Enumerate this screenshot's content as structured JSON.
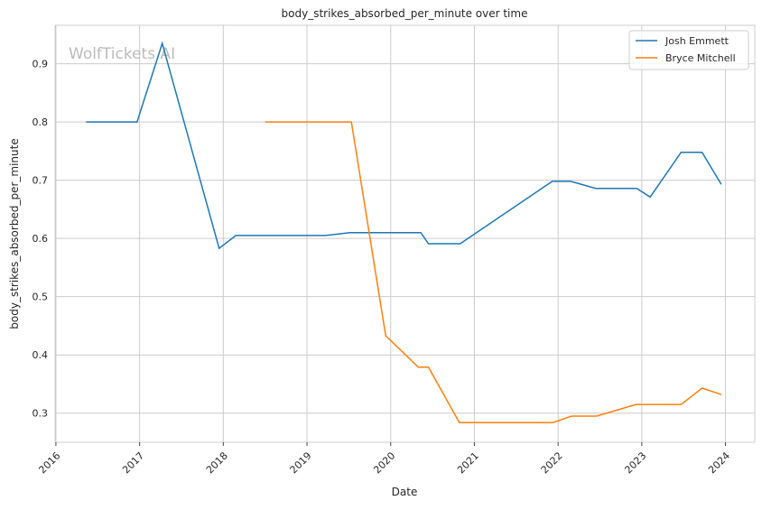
{
  "chart_data": {
    "type": "line",
    "title": "body_strikes_absorbed_per_minute over time",
    "xlabel": "Date",
    "ylabel": "body_strikes_absorbed_per_minute",
    "xlim": [
      2015.99,
      2024.35
    ],
    "ylim": [
      0.25,
      0.966
    ],
    "xticks": [
      2016,
      2017,
      2018,
      2019,
      2020,
      2021,
      2022,
      2023,
      2024
    ],
    "xtick_labels": [
      "2016",
      "2017",
      "2018",
      "2019",
      "2020",
      "2021",
      "2022",
      "2023",
      "2024"
    ],
    "yticks": [
      0.3,
      0.4,
      0.5,
      0.6,
      0.7,
      0.8,
      0.9
    ],
    "ytick_labels": [
      "0.3",
      "0.4",
      "0.5",
      "0.6",
      "0.7",
      "0.8",
      "0.9"
    ],
    "grid": true,
    "legend_position": "top-right",
    "watermark": "WolfTickets.AI",
    "series": [
      {
        "name": "Josh Emmett",
        "color": "#1f77b4",
        "x": [
          2016.36,
          2016.97,
          2017.27,
          2017.95,
          2018.15,
          2019.22,
          2019.51,
          2020.36,
          2020.45,
          2020.83,
          2021.93,
          2022.15,
          2022.45,
          2022.94,
          2023.1,
          2023.47,
          2023.72,
          2023.95
        ],
        "y": [
          0.8,
          0.8,
          0.935,
          0.583,
          0.605,
          0.605,
          0.61,
          0.61,
          0.591,
          0.591,
          0.698,
          0.698,
          0.686,
          0.686,
          0.671,
          0.748,
          0.748,
          0.693
        ]
      },
      {
        "name": "Bryce Mitchell",
        "color": "#ff7f0e",
        "x": [
          2018.5,
          2019.53,
          2019.94,
          2020.33,
          2020.45,
          2020.82,
          2021.94,
          2022.16,
          2022.46,
          2022.93,
          2023.47,
          2023.72,
          2023.95
        ],
        "y": [
          0.8,
          0.8,
          0.433,
          0.379,
          0.379,
          0.284,
          0.284,
          0.295,
          0.295,
          0.315,
          0.315,
          0.343,
          0.332
        ]
      }
    ]
  }
}
